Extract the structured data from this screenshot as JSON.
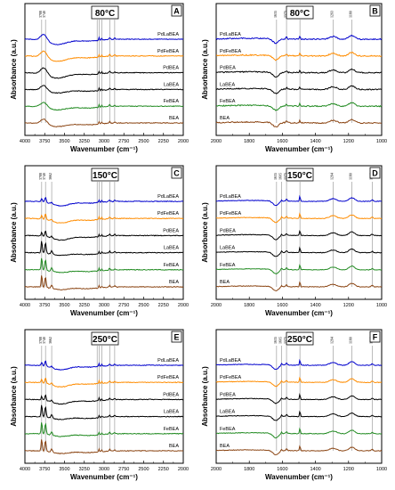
{
  "colors": {
    "BEA": "#8B4513",
    "FeBEA": "#228B22",
    "LaBEA": "#000000",
    "PdBEA": "#000000",
    "PdFeBEA": "#FF8C00",
    "PdLaBEA": "#0000CD"
  },
  "chart_data": [
    {
      "type": "line",
      "panel": "A",
      "temperature": "80°C",
      "xlabel": "Wavenumber (cm⁻¹)",
      "ylabel": "Absorbance (a.u.)",
      "xlim": [
        4000,
        2000
      ],
      "x_reversed": true,
      "xticks": [
        4000,
        3750,
        3500,
        3250,
        3000,
        2750,
        2500,
        2250,
        2000
      ],
      "series_order_top_to_bottom": [
        "PdLaBEA",
        "PdFeBEA",
        "PdBEA",
        "LaBEA",
        "FeBEA",
        "BEA"
      ],
      "peaks": [
        3788,
        3740,
        3088,
        3063,
        3030,
        2930,
        2866
      ],
      "grid": false,
      "legend": "inline-right"
    },
    {
      "type": "line",
      "panel": "B",
      "temperature": "80°C",
      "xlabel": "Wavenumber (cm⁻¹)",
      "ylabel": "Absorbance (a.u.)",
      "xlim": [
        2000,
        1000
      ],
      "x_reversed": true,
      "xticks": [
        2000,
        1800,
        1600,
        1400,
        1200,
        1000
      ],
      "series_order_top_to_bottom": [
        "PdLaBEA",
        "PdFeBEA",
        "PdBEA",
        "LaBEA",
        "FeBEA",
        "BEA"
      ],
      "peaks": [
        1635,
        1575,
        1494,
        1293,
        1180
      ],
      "grid": false,
      "legend": "inline-left"
    },
    {
      "type": "line",
      "panel": "C",
      "temperature": "150°C",
      "xlabel": "Wavenumber (cm⁻¹)",
      "ylabel": "Absorbance (a.u.)",
      "xlim": [
        4000,
        2000
      ],
      "x_reversed": true,
      "xticks": [
        4000,
        3750,
        3500,
        3250,
        3000,
        2750,
        2500,
        2250,
        2000
      ],
      "series_order_top_to_bottom": [
        "PdLaBEA",
        "PdFeBEA",
        "PdBEA",
        "LaBEA",
        "FeBEA",
        "BEA"
      ],
      "peaks": [
        3788,
        3740,
        3662,
        3088,
        3063,
        3030,
        2930,
        2866
      ],
      "grid": false,
      "legend": "inline-right"
    },
    {
      "type": "line",
      "panel": "D",
      "temperature": "150°C",
      "xlabel": "Wavenumber (cm⁻¹)",
      "ylabel": "Absorbance (a.u.)",
      "xlim": [
        2000,
        1000
      ],
      "x_reversed": true,
      "xticks": [
        2000,
        1800,
        1600,
        1400,
        1200,
        1000
      ],
      "series_order_top_to_bottom": [
        "PdLaBEA",
        "PdFeBEA",
        "PdBEA",
        "LaBEA",
        "FeBEA",
        "BEA"
      ],
      "peaks": [
        1635,
        1605,
        1575,
        1494,
        1294,
        1180,
        1057
      ],
      "grid": false,
      "legend": "inline-left"
    },
    {
      "type": "line",
      "panel": "E",
      "temperature": "250°C",
      "xlabel": "Wavenumber (cm⁻¹)",
      "ylabel": "Absorbance (a.u.)",
      "xlim": [
        4000,
        2000
      ],
      "x_reversed": true,
      "xticks": [
        4000,
        3750,
        3500,
        3250,
        3000,
        2750,
        2500,
        2250,
        2000
      ],
      "series_order_top_to_bottom": [
        "PdLaBEA",
        "PdFeBEA",
        "PdBEA",
        "LaBEA",
        "FeBEA",
        "BEA"
      ],
      "peaks": [
        3788,
        3740,
        3662,
        3088,
        3063,
        3030,
        2930,
        2866
      ],
      "grid": false,
      "legend": "inline-right"
    },
    {
      "type": "line",
      "panel": "F",
      "temperature": "250°C",
      "xlabel": "Wavenumber (cm⁻¹)",
      "ylabel": "Absorbance (a.u.)",
      "xlim": [
        2000,
        1000
      ],
      "x_reversed": true,
      "xticks": [
        2000,
        1800,
        1600,
        1400,
        1200,
        1000
      ],
      "series_order_top_to_bottom": [
        "PdLaBEA",
        "PdFeBEA",
        "PdBEA",
        "LaBEA",
        "FeBEA",
        "BEA"
      ],
      "peaks": [
        1635,
        1605,
        1575,
        1494,
        1294,
        1180,
        1057
      ],
      "grid": false,
      "legend": "inline-left"
    }
  ]
}
